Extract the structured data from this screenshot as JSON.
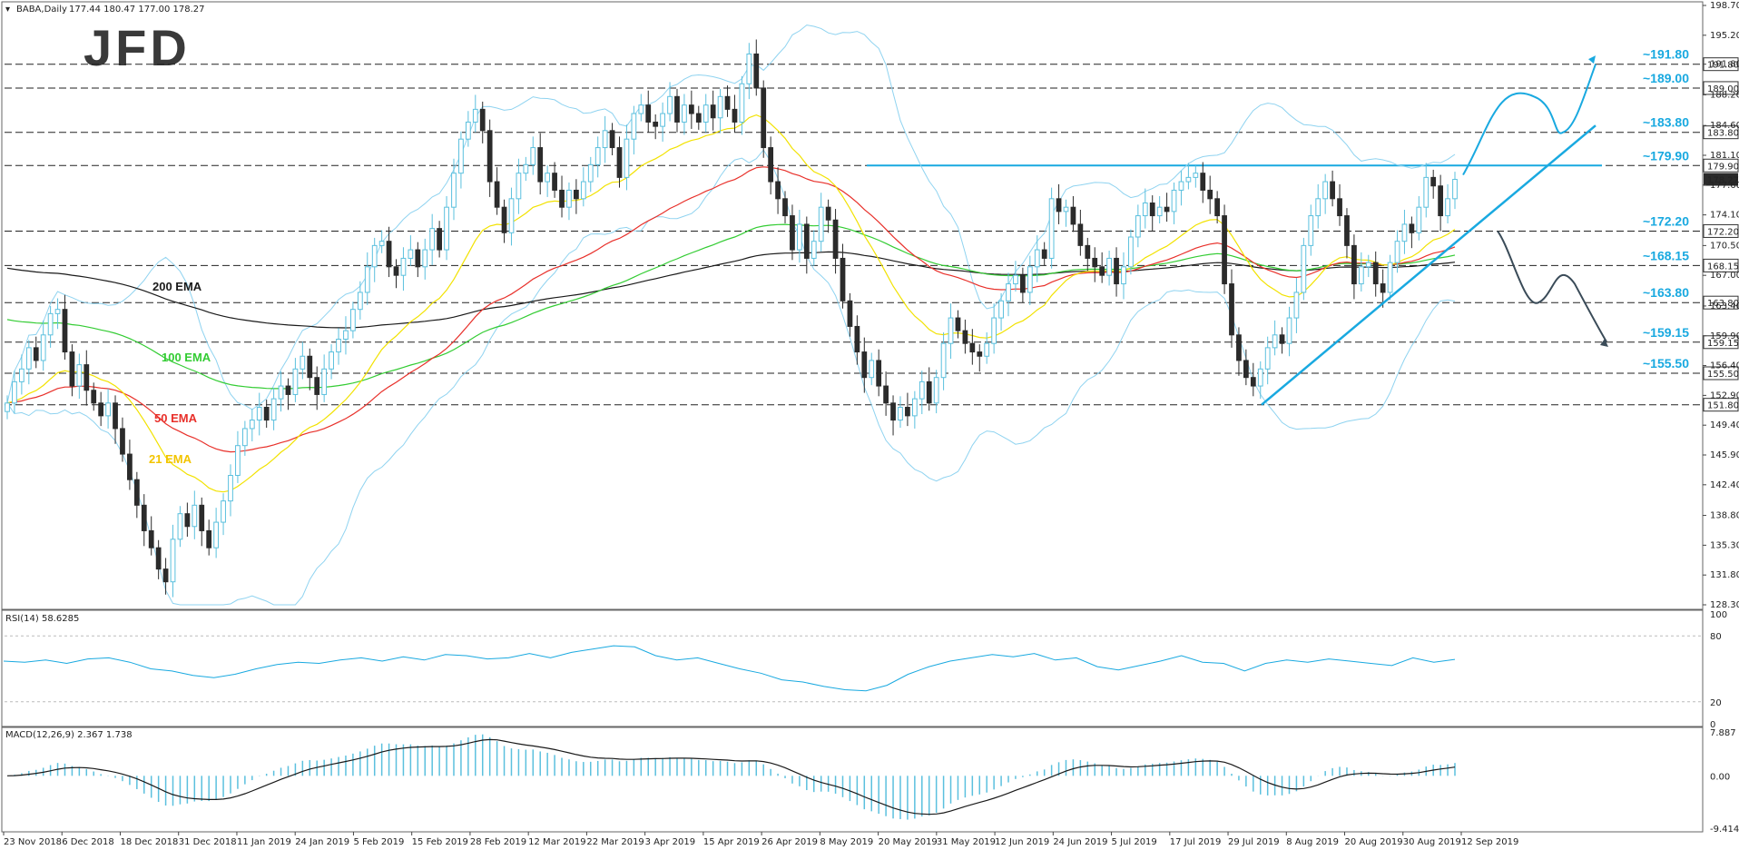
{
  "header": {
    "symbol_text": "BABA,Daily",
    "ohlc_text": "177.44 180.47 177.00 178.27"
  },
  "logo": {
    "text": "JFD"
  },
  "colors": {
    "up": "#5bc0de",
    "down": "#2b2b2b",
    "ema21": "#f2e200",
    "ema50": "#e8302a",
    "ema100": "#33cc33",
    "ema200": "#1a1a1a",
    "bollinger": "#8fd3f0",
    "trend": "#19a9e0",
    "level_label": "#19a9e0",
    "last_price_bg": "#2a2a2a"
  },
  "chart_data": [
    {
      "type": "candlestick",
      "title": "BABA,Daily",
      "y_range": [
        128.3,
        198.7
      ],
      "price_axis_ticks": [
        "198.70",
        "195.20",
        "191.80",
        "188.20",
        "184.60",
        "181.10",
        "177.60",
        "174.10",
        "170.50",
        "167.00",
        "163.40",
        "159.90",
        "156.40",
        "152.90",
        "149.40",
        "145.90",
        "142.40",
        "138.80",
        "135.30",
        "131.80",
        "128.30"
      ],
      "x_ticks": [
        "23 Nov 2018",
        "6 Dec 2018",
        "18 Dec 2018",
        "31 Dec 2018",
        "11 Jan 2019",
        "24 Jan 2019",
        "5 Feb 2019",
        "15 Feb 2019",
        "28 Feb 2019",
        "12 Mar 2019",
        "22 Mar 2019",
        "3 Apr 2019",
        "15 Apr 2019",
        "26 Apr 2019",
        "8 May 2019",
        "20 May 2019",
        "31 May 2019",
        "12 Jun 2019",
        "24 Jun 2019",
        "5 Jul 2019",
        "17 Jul 2019",
        "29 Jul 2019",
        "8 Aug 2019",
        "20 Aug 2019",
        "30 Aug 2019",
        "12 Sep 2019"
      ],
      "closes": [
        152.0,
        154.5,
        156.0,
        158.5,
        157.0,
        160.0,
        162.5,
        163.0,
        158.0,
        154.0,
        156.5,
        153.5,
        152.0,
        150.5,
        152.0,
        149.0,
        146.0,
        143.0,
        140.0,
        137.0,
        135.0,
        132.5,
        131.0,
        136.0,
        139.0,
        137.5,
        140.0,
        137.0,
        135.0,
        138.0,
        140.5,
        143.5,
        147.0,
        149.0,
        150.0,
        151.5,
        150.0,
        152.5,
        154.0,
        153.0,
        156.0,
        157.5,
        155.0,
        153.0,
        156.0,
        158.0,
        159.5,
        160.5,
        163.0,
        165.0,
        168.0,
        170.5,
        171.0,
        168.0,
        167.0,
        169.0,
        170.0,
        168.0,
        170.0,
        172.5,
        170.0,
        175.0,
        179.0,
        183.0,
        185.0,
        186.5,
        184.0,
        178.0,
        175.0,
        172.0,
        176.0,
        179.0,
        180.0,
        182.0,
        178.0,
        179.0,
        177.0,
        175.0,
        177.0,
        176.0,
        178.0,
        180.0,
        182.0,
        184.0,
        182.0,
        178.5,
        183.0,
        186.0,
        187.0,
        185.0,
        184.5,
        186.0,
        188.0,
        185.0,
        187.0,
        186.0,
        185.0,
        187.0,
        185.5,
        188.0,
        186.5,
        185.0,
        189.5,
        193.0,
        189.0,
        182.0,
        178.0,
        176.0,
        174.0,
        170.0,
        173.0,
        169.0,
        171.0,
        175.0,
        173.5,
        169.0,
        164.0,
        161.0,
        158.0,
        155.0,
        157.0,
        154.0,
        152.0,
        150.0,
        151.5,
        150.5,
        152.5,
        154.5,
        152.0,
        155.0,
        159.0,
        162.0,
        160.5,
        159.0,
        158.0,
        157.5,
        159.0,
        162.0,
        164.0,
        166.0,
        167.0,
        165.0,
        168.0,
        170.0,
        169.0,
        176.0,
        174.5,
        175.0,
        173.0,
        170.5,
        169.0,
        168.0,
        167.0,
        169.0,
        166.0,
        168.0,
        171.5,
        174.0,
        175.5,
        174.0,
        175.0,
        174.5,
        177.0,
        178.0,
        178.5,
        179.0,
        177.0,
        176.0,
        174.0,
        166.0,
        160.0,
        157.0,
        155.0,
        154.0,
        156.0,
        158.5,
        160.0,
        159.0,
        162.0,
        165.0,
        170.5,
        174.0,
        176.0,
        178.0,
        176.0,
        174.0,
        170.5,
        166.0,
        168.0,
        168.5,
        166.0,
        165.0,
        168.5,
        171.0,
        173.0,
        172.0,
        175.0,
        178.5,
        177.5,
        174.0,
        176.0,
        178.27
      ],
      "annotations": [
        "200 EMA",
        "100 EMA",
        "50 EMA",
        "21 EMA"
      ],
      "levels": [
        {
          "label": "~191.80",
          "value": 191.8,
          "tag": "191.80",
          "tag_dark": false
        },
        {
          "label": "~189.00",
          "value": 189.0,
          "tag": "189.00",
          "tag_dark": false
        },
        {
          "label": "~183.80",
          "value": 183.8,
          "tag": "183.80",
          "tag_dark": false
        },
        {
          "label": "~179.90",
          "value": 179.9,
          "tag": "179.90",
          "tag_dark": false
        },
        {
          "label": "~172.20",
          "value": 172.2,
          "tag": "172.20",
          "tag_dark": false
        },
        {
          "label": "~168.15",
          "value": 168.15,
          "tag": "168.15",
          "tag_dark": false
        },
        {
          "label": "~163.80",
          "value": 163.8,
          "tag": "163.80",
          "tag_dark": false
        },
        {
          "label": "~159.15",
          "value": 159.15,
          "tag": "159.15",
          "tag_dark": false
        },
        {
          "label": "~155.50",
          "value": 155.5,
          "tag": "155.50",
          "tag_dark": false
        },
        {
          "label": "",
          "value": 151.8,
          "tag": "151.80",
          "tag_dark": false
        }
      ],
      "last_price": "178.27"
    },
    {
      "type": "line",
      "title": "RSI(14) 58.6285",
      "y_range": [
        0,
        100
      ],
      "ticks": [
        "100",
        "80",
        "20",
        "0"
      ],
      "levels": [
        80,
        20
      ],
      "values": [
        57,
        56,
        58,
        55,
        59,
        60,
        56,
        50,
        48,
        44,
        42,
        45,
        50,
        54,
        56,
        55,
        58,
        60,
        57,
        61,
        58,
        63,
        62,
        59,
        60,
        64,
        60,
        65,
        68,
        71,
        70,
        62,
        58,
        60,
        55,
        50,
        46,
        40,
        38,
        34,
        31,
        30,
        35,
        45,
        52,
        57,
        60,
        63,
        61,
        64,
        58,
        60,
        52,
        49,
        53,
        57,
        62,
        56,
        55,
        48,
        55,
        58,
        56,
        59,
        57,
        55,
        53,
        60,
        56,
        58.6
      ]
    },
    {
      "type": "bar",
      "title": "MACD(12,26,9) 2.367 1.738",
      "y_range": [
        -9.414,
        7.887
      ],
      "ticks": [
        "7.887",
        "0.00",
        "-9.414"
      ]
    }
  ]
}
